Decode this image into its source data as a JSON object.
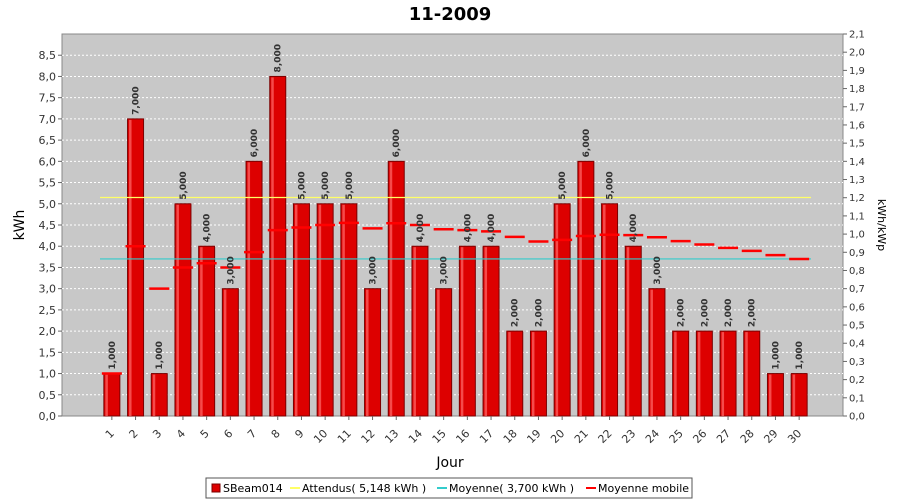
{
  "chart_data": {
    "type": "bar",
    "title": "11-2009",
    "xlabel": "Jour",
    "ylabel": "kWh",
    "y2label": "kWh/kWp",
    "ylim": [
      0,
      9
    ],
    "y2lim": [
      0,
      2.1
    ],
    "yticks": [
      "0,0",
      "0,5",
      "1,0",
      "1,5",
      "2,0",
      "2,5",
      "3,0",
      "3,5",
      "4,0",
      "4,5",
      "5,0",
      "5,5",
      "6,0",
      "6,5",
      "7,0",
      "7,5",
      "8,0",
      "8,5"
    ],
    "y2ticks": [
      "0,0",
      "0,1",
      "0,2",
      "0,3",
      "0,4",
      "0,5",
      "0,6",
      "0,7",
      "0,8",
      "0,9",
      "1,0",
      "1,1",
      "1,2",
      "1,3",
      "1,4",
      "1,5",
      "1,6",
      "1,7",
      "1,8",
      "1,9",
      "2,0",
      "2,1"
    ],
    "categories": [
      "1",
      "2",
      "3",
      "4",
      "5",
      "6",
      "7",
      "8",
      "9",
      "10",
      "11",
      "12",
      "13",
      "14",
      "15",
      "16",
      "17",
      "18",
      "19",
      "20",
      "21",
      "22",
      "23",
      "24",
      "25",
      "26",
      "27",
      "28",
      "29",
      "30"
    ],
    "series": [
      {
        "name": "SBeam014",
        "kind": "bar",
        "color": "#dd0000",
        "values": [
          1,
          7,
          1,
          5,
          4,
          3,
          6,
          8,
          5,
          5,
          5,
          3,
          6,
          4,
          3,
          4,
          4,
          2,
          2,
          5,
          6,
          5,
          4,
          3,
          2,
          2,
          2,
          2,
          1,
          1
        ],
        "labels": [
          "1,000",
          "7,000",
          "1,000",
          "5,000",
          "4,000",
          "3,000",
          "6,000",
          "8,000",
          "5,000",
          "5,000",
          "5,000",
          "3,000",
          "6,000",
          "4,000",
          "3,000",
          "4,000",
          "4,000",
          "2,000",
          "2,000",
          "5,000",
          "6,000",
          "5,000",
          "4,000",
          "3,000",
          "2,000",
          "2,000",
          "2,000",
          "2,000",
          "1,000",
          "1,000"
        ]
      },
      {
        "name": "Attendus( 5,148 kWh )",
        "kind": "hline",
        "color": "#ffff66",
        "value": 5.148
      },
      {
        "name": "Moyenne( 3,700 kWh )",
        "kind": "hline",
        "color": "#33cccc",
        "value": 3.7
      },
      {
        "name": "Moyenne mobile",
        "kind": "step",
        "color": "#ff0000",
        "values": [
          1.0,
          4.0,
          3.0,
          3.5,
          3.6,
          3.5,
          3.86,
          4.38,
          4.44,
          4.5,
          4.55,
          4.42,
          4.54,
          4.5,
          4.4,
          4.38,
          4.35,
          4.22,
          4.11,
          4.15,
          4.24,
          4.27,
          4.26,
          4.21,
          4.12,
          4.04,
          3.96,
          3.89,
          3.79,
          3.7
        ]
      }
    ],
    "grid": true,
    "legend": "bottom"
  },
  "colors": {
    "plot_bg": "#c8c8c8",
    "bar": "#dd0000",
    "bar_edge": "#7a0000",
    "expected": "#ffff66",
    "average": "#33cccc",
    "moving_avg": "#ff0000"
  }
}
